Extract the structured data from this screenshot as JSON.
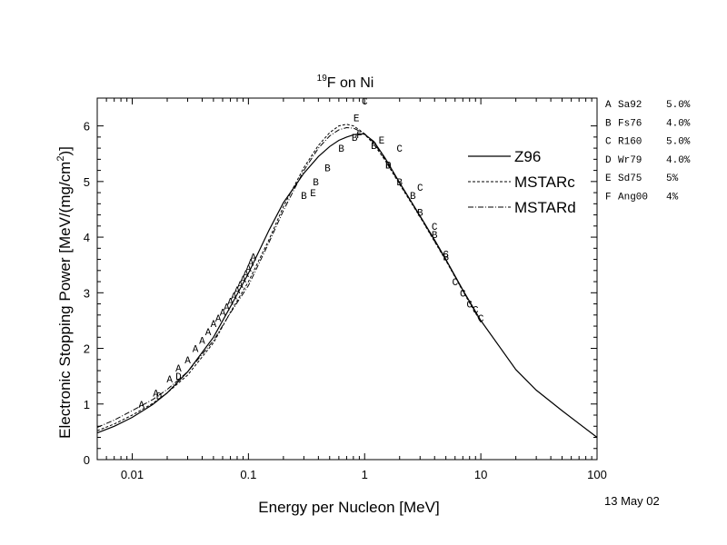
{
  "chart_data": {
    "type": "line",
    "title_sup": "19",
    "title_main": "F on Ni",
    "xlabel": "Energy per Nucleon [MeV]",
    "ylabel_pre": "Electronic Stopping Power [MeV/(mg/cm",
    "ylabel_sup": "2",
    "ylabel_post": ")]",
    "xscale": "log",
    "xlim": [
      0.005,
      100
    ],
    "ylim": [
      0,
      6.5
    ],
    "xticks": [
      {
        "v": 0.01,
        "label": "0.01"
      },
      {
        "v": 0.1,
        "label": "0.1"
      },
      {
        "v": 1,
        "label": "1"
      },
      {
        "v": 10,
        "label": "10"
      },
      {
        "v": 100,
        "label": "100"
      }
    ],
    "yticks": [
      {
        "v": 0,
        "label": "0"
      },
      {
        "v": 1,
        "label": "1"
      },
      {
        "v": 2,
        "label": "2"
      },
      {
        "v": 3,
        "label": "3"
      },
      {
        "v": 4,
        "label": "4"
      },
      {
        "v": 5,
        "label": "5"
      },
      {
        "v": 6,
        "label": "6"
      }
    ],
    "series": [
      {
        "name": "Z96",
        "dash": "",
        "x": [
          0.005,
          0.007,
          0.01,
          0.015,
          0.02,
          0.03,
          0.05,
          0.07,
          0.1,
          0.15,
          0.2,
          0.3,
          0.4,
          0.5,
          0.6,
          0.7,
          0.8,
          0.9,
          1.0,
          1.2,
          1.5,
          2,
          3,
          4,
          5,
          7,
          10,
          20,
          30,
          50,
          100
        ],
        "y": [
          0.48,
          0.6,
          0.76,
          0.99,
          1.2,
          1.58,
          2.2,
          2.75,
          3.35,
          4.12,
          4.62,
          5.15,
          5.45,
          5.63,
          5.74,
          5.8,
          5.84,
          5.86,
          5.85,
          5.72,
          5.42,
          4.98,
          4.38,
          3.95,
          3.6,
          3.05,
          2.5,
          1.62,
          1.25,
          0.88,
          0.4
        ]
      },
      {
        "name": "MSTARc",
        "dash": "3,2",
        "x": [
          0.005,
          0.007,
          0.01,
          0.015,
          0.02,
          0.03,
          0.05,
          0.07,
          0.1,
          0.15,
          0.2,
          0.3,
          0.4,
          0.5,
          0.6,
          0.7,
          0.8,
          0.9,
          1.0,
          1.2,
          1.5,
          2,
          3,
          4,
          5,
          7,
          10
        ],
        "y": [
          0.52,
          0.64,
          0.8,
          1.01,
          1.2,
          1.52,
          2.1,
          2.65,
          3.2,
          3.95,
          4.55,
          5.25,
          5.65,
          5.88,
          6.0,
          6.03,
          6.0,
          5.93,
          5.85,
          5.67,
          5.38,
          4.95,
          4.36,
          3.92,
          3.58,
          3.03,
          2.47
        ]
      },
      {
        "name": "MSTARd",
        "dash": "6,2,1,2",
        "x": [
          0.005,
          0.007,
          0.01,
          0.015,
          0.02,
          0.03,
          0.05,
          0.07,
          0.1,
          0.15,
          0.2,
          0.3,
          0.4,
          0.5,
          0.6,
          0.7,
          0.8,
          0.9,
          1.0,
          1.2,
          1.5,
          2,
          3,
          4,
          5,
          7,
          10
        ],
        "y": [
          0.58,
          0.71,
          0.88,
          1.08,
          1.26,
          1.58,
          2.14,
          2.64,
          3.13,
          3.9,
          4.48,
          5.2,
          5.6,
          5.82,
          5.93,
          5.97,
          5.96,
          5.91,
          5.86,
          5.7,
          5.4,
          4.97,
          4.37,
          3.93,
          3.59,
          3.04,
          2.48
        ]
      }
    ],
    "datasets": [
      {
        "marker": "A",
        "ref": "Sa92",
        "err": "5.0%",
        "points": [
          [
            0.012,
            1.0
          ],
          [
            0.016,
            1.2
          ],
          [
            0.021,
            1.45
          ],
          [
            0.025,
            1.65
          ],
          [
            0.03,
            1.8
          ],
          [
            0.035,
            2.0
          ],
          [
            0.04,
            2.15
          ],
          [
            0.045,
            2.3
          ],
          [
            0.05,
            2.45
          ],
          [
            0.055,
            2.55
          ],
          [
            0.06,
            2.65
          ],
          [
            0.065,
            2.75
          ],
          [
            0.07,
            2.85
          ],
          [
            0.075,
            2.95
          ],
          [
            0.08,
            3.05
          ],
          [
            0.085,
            3.15
          ],
          [
            0.09,
            3.25
          ],
          [
            0.095,
            3.35
          ],
          [
            0.1,
            3.45
          ],
          [
            0.105,
            3.55
          ],
          [
            0.11,
            3.65
          ]
        ]
      },
      {
        "marker": "B",
        "ref": "Fs76",
        "err": "4.0%",
        "points": [
          [
            0.3,
            4.75
          ],
          [
            0.38,
            5.0
          ],
          [
            0.48,
            5.25
          ],
          [
            0.63,
            5.6
          ],
          [
            0.82,
            5.8
          ],
          [
            1.2,
            5.65
          ],
          [
            1.6,
            5.3
          ],
          [
            2.0,
            5.0
          ],
          [
            2.6,
            4.75
          ],
          [
            3.0,
            4.45
          ],
          [
            4.0,
            4.05
          ],
          [
            5.0,
            3.65
          ]
        ]
      },
      {
        "marker": "C",
        "ref": "R160",
        "err": "5.0%",
        "points": [
          [
            1.0,
            6.45
          ],
          [
            2.0,
            5.6
          ],
          [
            3.0,
            4.9
          ],
          [
            4.0,
            4.2
          ],
          [
            5.0,
            3.7
          ],
          [
            6.0,
            3.2
          ],
          [
            7.0,
            3.0
          ],
          [
            8.0,
            2.8
          ],
          [
            9.0,
            2.7
          ],
          [
            10.0,
            2.55
          ]
        ]
      },
      {
        "marker": "D",
        "ref": "Wr79",
        "err": "4.0%",
        "points": [
          [
            0.017,
            1.15
          ],
          [
            0.025,
            1.5
          ],
          [
            1.6,
            5.3
          ]
        ]
      },
      {
        "marker": "E",
        "ref": "Sd75",
        "err": "5%",
        "points": [
          [
            0.36,
            4.8
          ],
          [
            0.85,
            6.15
          ],
          [
            1.4,
            5.75
          ]
        ]
      },
      {
        "marker": "F",
        "ref": "Ang00",
        "err": "4%",
        "points": [
          [
            0.9,
            5.85
          ]
        ]
      }
    ]
  },
  "date_label": "13 May 02"
}
